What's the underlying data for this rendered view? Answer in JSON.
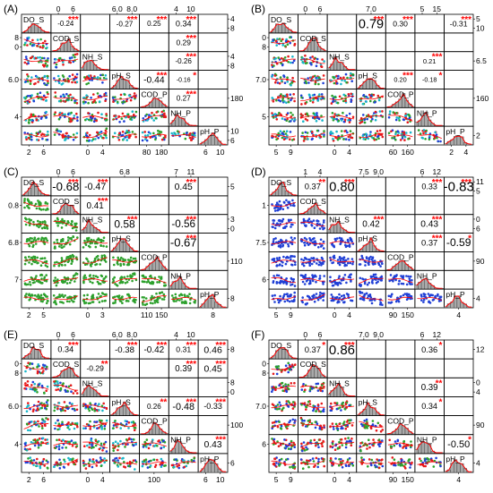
{
  "colors": {
    "red": "#e41a1c",
    "green": "#2ca02c",
    "blue": "#1f3fd6",
    "cyan": "#19b6c9",
    "hist": "#a9a9a9",
    "border": "#000000",
    "fit": "#ff0000"
  },
  "variables": [
    "DO_S",
    "COD_S",
    "NH_S",
    "pH_S",
    "COD_P",
    "NH_P",
    "pH_P"
  ],
  "chart_data": [
    {
      "type": "scatter_matrix",
      "panel_label": "(A)",
      "variables": [
        "DO_S",
        "COD_S",
        "NH_S",
        "pH_S",
        "COD_P",
        "NH_P",
        "pH_P"
      ],
      "point_colors": [
        "red",
        "green",
        "blue",
        "cyan"
      ],
      "top_ticks": {
        "2": [
          "0",
          "6"
        ],
        "4": [
          "6.0",
          "8.0"
        ],
        "6": [
          "4",
          "10"
        ]
      },
      "bottom_ticks": {
        "1": [
          "2",
          "6"
        ],
        "3": [
          "0",
          "4"
        ],
        "5": [
          "80",
          "180"
        ],
        "7": [
          "6",
          "10"
        ]
      },
      "left_ticks": {
        "2": [
          "0",
          "8"
        ],
        "4": [
          "6.0"
        ],
        "6": [
          "4"
        ]
      },
      "right_ticks": {
        "1": [
          "8",
          "4"
        ],
        "3": [
          "8",
          "4"
        ],
        "5": [
          "180"
        ],
        "7": [
          "6",
          "10"
        ]
      },
      "correlations": [
        {
          "r": 1,
          "c": 2,
          "value": "-0.24",
          "stars": "***"
        },
        {
          "r": 1,
          "c": 3,
          "value": "",
          "stars": ""
        },
        {
          "r": 1,
          "c": 4,
          "value": "-0.27",
          "stars": "***"
        },
        {
          "r": 1,
          "c": 5,
          "value": "0.25",
          "stars": "***"
        },
        {
          "r": 1,
          "c": 6,
          "value": "0.34",
          "stars": "***"
        },
        {
          "r": 1,
          "c": 7,
          "value": "",
          "stars": ""
        },
        {
          "r": 2,
          "c": 6,
          "value": "0.29",
          "stars": "***"
        },
        {
          "r": 3,
          "c": 6,
          "value": "-0.26",
          "stars": "***"
        },
        {
          "r": 4,
          "c": 5,
          "value": "-0.44",
          "stars": "***"
        },
        {
          "r": 4,
          "c": 6,
          "value": "-0.16",
          "stars": "*"
        },
        {
          "r": 5,
          "c": 6,
          "value": "0.27",
          "stars": "***"
        }
      ]
    },
    {
      "type": "scatter_matrix",
      "panel_label": "(B)",
      "variables": [
        "DO_S",
        "COD_S",
        "NH_S",
        "pH_S",
        "COD_P",
        "NH_P",
        "pH_P"
      ],
      "point_colors": [
        "red",
        "green",
        "blue",
        "cyan"
      ],
      "top_ticks": {
        "2": [
          "0",
          "6"
        ],
        "4": [
          "7.0"
        ],
        "6": [
          "5",
          "15"
        ]
      },
      "bottom_ticks": {
        "1": [
          "5",
          "9"
        ],
        "3": [
          "0",
          "4"
        ],
        "5": [
          "60",
          "160"
        ],
        "7": [
          "2",
          "4"
        ]
      },
      "left_ticks": {
        "2": [
          "8",
          "0"
        ],
        "4": [
          "7.0"
        ],
        "6": [
          "5"
        ]
      },
      "right_ticks": {
        "1": [
          "10",
          "5"
        ],
        "3": [
          "6.5"
        ],
        "5": [
          "160"
        ],
        "7": [
          "2"
        ]
      },
      "correlations": [
        {
          "r": 1,
          "c": 4,
          "value": "0.79",
          "stars": "***"
        },
        {
          "r": 1,
          "c": 5,
          "value": "0.30",
          "stars": "***"
        },
        {
          "r": 1,
          "c": 7,
          "value": "-0.31",
          "stars": "***"
        },
        {
          "r": 3,
          "c": 6,
          "value": "0.21",
          "stars": "***"
        },
        {
          "r": 4,
          "c": 5,
          "value": "0.20",
          "stars": "***"
        },
        {
          "r": 4,
          "c": 6,
          "value": "-0.18",
          "stars": "*"
        }
      ]
    },
    {
      "type": "scatter_matrix",
      "panel_label": "(C)",
      "variables": [
        "DO_S",
        "COD_S",
        "NH_S",
        "pH_S",
        "COD_P",
        "NH_P",
        "pH_P"
      ],
      "point_colors": [
        "green"
      ],
      "top_ticks": {
        "2": [
          "0",
          "6"
        ],
        "4": [
          "6.8"
        ],
        "6": [
          "7",
          "11"
        ]
      },
      "bottom_ticks": {
        "1": [
          "2",
          "5"
        ],
        "3": [
          "0",
          "3"
        ],
        "5": [
          "110",
          "150"
        ],
        "7": [
          "8"
        ]
      },
      "left_ticks": {
        "2": [
          "0.8"
        ],
        "4": [
          "6.8"
        ],
        "6": [
          "7"
        ]
      },
      "right_ticks": {
        "1": [
          "5"
        ],
        "3": [
          "0",
          "3"
        ],
        "5": [
          "110"
        ],
        "7": [
          "8"
        ]
      },
      "correlations": [
        {
          "r": 1,
          "c": 2,
          "value": "-0.68",
          "stars": "***"
        },
        {
          "r": 1,
          "c": 3,
          "value": "-0.47",
          "stars": "***"
        },
        {
          "r": 1,
          "c": 6,
          "value": "0.45",
          "stars": "***"
        },
        {
          "r": 2,
          "c": 3,
          "value": "0.41",
          "stars": "***"
        },
        {
          "r": 3,
          "c": 4,
          "value": "0.58",
          "stars": "***"
        },
        {
          "r": 3,
          "c": 6,
          "value": "-0.56",
          "stars": "***"
        },
        {
          "r": 4,
          "c": 6,
          "value": "-0.67",
          "stars": "***"
        }
      ]
    },
    {
      "type": "scatter_matrix",
      "panel_label": "(D)",
      "variables": [
        "DO_S",
        "COD_S",
        "NH_S",
        "pH_S",
        "COD_P",
        "NH_P",
        "pH_P"
      ],
      "point_colors": [
        "blue"
      ],
      "top_ticks": {
        "2": [
          "1",
          "4"
        ],
        "4": [
          "7.5",
          "9.0"
        ],
        "6": [
          "6",
          "12"
        ]
      },
      "bottom_ticks": {
        "1": [
          "5",
          "9"
        ],
        "3": [
          "0",
          "4"
        ],
        "5": [
          "90",
          "150"
        ],
        "7": [
          "4"
        ]
      },
      "left_ticks": {
        "2": [
          "1"
        ],
        "4": [
          "7.5"
        ],
        "6": [
          "6"
        ]
      },
      "right_ticks": {
        "1": [
          "5",
          "11"
        ],
        "3": [
          "6",
          "0"
        ],
        "5": [
          "90"
        ],
        "7": [
          "4"
        ]
      },
      "correlations": [
        {
          "r": 1,
          "c": 2,
          "value": "0.37",
          "stars": "**"
        },
        {
          "r": 1,
          "c": 3,
          "value": "0.80",
          "stars": "***"
        },
        {
          "r": 1,
          "c": 6,
          "value": "0.33",
          "stars": "***"
        },
        {
          "r": 1,
          "c": 7,
          "value": "-0.83",
          "stars": "***"
        },
        {
          "r": 3,
          "c": 4,
          "value": "0.42",
          "stars": "***"
        },
        {
          "r": 3,
          "c": 6,
          "value": "0.43",
          "stars": "***"
        },
        {
          "r": 4,
          "c": 6,
          "value": "0.37",
          "stars": "***"
        },
        {
          "r": 4,
          "c": 7,
          "value": "-0.59",
          "stars": "*"
        }
      ]
    },
    {
      "type": "scatter_matrix",
      "panel_label": "(E)",
      "variables": [
        "DO_S",
        "COD_S",
        "NH_S",
        "pH_S",
        "COD_P",
        "NH_P",
        "pH_P"
      ],
      "point_colors": [
        "red",
        "green",
        "blue",
        "cyan"
      ],
      "top_ticks": {
        "2": [
          "0",
          "6"
        ],
        "4": [
          "6.0",
          "8.0"
        ],
        "6": [
          "4",
          "10"
        ]
      },
      "bottom_ticks": {
        "1": [
          "2",
          "6"
        ],
        "3": [
          "0",
          "4"
        ],
        "5": [
          "100"
        ],
        "7": [
          "6",
          "10"
        ]
      },
      "left_ticks": {
        "2": [
          "8",
          "0"
        ],
        "4": [
          "6.0"
        ],
        "6": [
          "4"
        ]
      },
      "right_ticks": {
        "1": [
          "8"
        ],
        "3": [
          "0",
          "8"
        ],
        "5": [
          "100"
        ],
        "7": [
          "6"
        ]
      },
      "correlations": [
        {
          "r": 1,
          "c": 2,
          "value": "0.34",
          "stars": "***"
        },
        {
          "r": 1,
          "c": 4,
          "value": "-0.38",
          "stars": "***"
        },
        {
          "r": 1,
          "c": 5,
          "value": "-0.42",
          "stars": "***"
        },
        {
          "r": 1,
          "c": 6,
          "value": "0.31",
          "stars": "***"
        },
        {
          "r": 1,
          "c": 7,
          "value": "0.46",
          "stars": "***"
        },
        {
          "r": 2,
          "c": 3,
          "value": "-0.29",
          "stars": "**"
        },
        {
          "r": 2,
          "c": 6,
          "value": "0.39",
          "stars": "***"
        },
        {
          "r": 2,
          "c": 7,
          "value": "0.45",
          "stars": "***"
        },
        {
          "r": 4,
          "c": 5,
          "value": "0.26",
          "stars": "**"
        },
        {
          "r": 4,
          "c": 6,
          "value": "-0.48",
          "stars": "***"
        },
        {
          "r": 4,
          "c": 7,
          "value": "-0.33",
          "stars": "***"
        },
        {
          "r": 6,
          "c": 7,
          "value": "0.43",
          "stars": "***"
        }
      ]
    },
    {
      "type": "scatter_matrix",
      "panel_label": "(F)",
      "variables": [
        "DO_S",
        "COD_S",
        "NH_S",
        "pH_S",
        "COD_P",
        "NH_P",
        "pH_P"
      ],
      "point_colors": [
        "red",
        "green",
        "blue"
      ],
      "top_ticks": {
        "2": [
          "0",
          "6"
        ],
        "4": [
          "7.0",
          "9.0"
        ],
        "6": [
          "6",
          "12"
        ]
      },
      "bottom_ticks": {
        "1": [
          "5",
          "9"
        ],
        "3": [
          "0",
          "4"
        ],
        "5": [
          "90",
          "150"
        ],
        "7": [
          "4"
        ]
      },
      "left_ticks": {
        "2": [
          "8",
          "0"
        ],
        "4": [
          "7.0"
        ],
        "6": [
          "6"
        ]
      },
      "right_ticks": {
        "1": [
          "12"
        ],
        "3": [
          "4",
          "0"
        ],
        "5": [
          "90"
        ],
        "7": [
          "4"
        ]
      },
      "correlations": [
        {
          "r": 1,
          "c": 2,
          "value": "0.37",
          "stars": "*"
        },
        {
          "r": 1,
          "c": 3,
          "value": "0.86",
          "stars": "***"
        },
        {
          "r": 1,
          "c": 6,
          "value": "0.36",
          "stars": "*"
        },
        {
          "r": 3,
          "c": 6,
          "value": "0.39",
          "stars": "**"
        },
        {
          "r": 4,
          "c": 6,
          "value": "0.34",
          "stars": "*"
        },
        {
          "r": 6,
          "c": 7,
          "value": "-0.50",
          "stars": "*"
        }
      ]
    }
  ]
}
